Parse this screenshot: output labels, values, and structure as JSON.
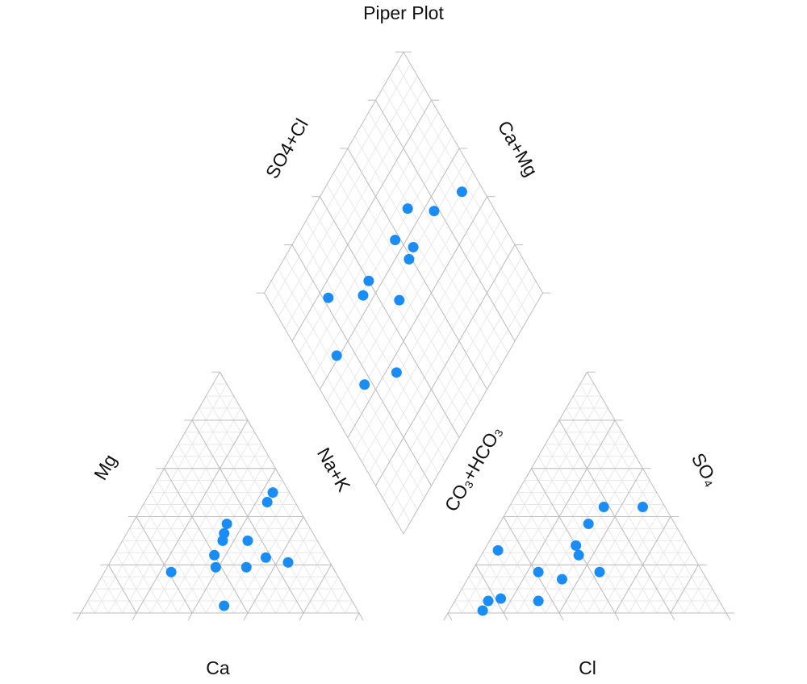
{
  "chart_data": {
    "type": "piper",
    "title": "Piper Plot",
    "ticks": [
      0,
      20,
      40,
      60,
      80,
      100
    ],
    "color": "#1a8cf5",
    "cation": {
      "labels": {
        "ca": "Ca",
        "mg": "Mg",
        "nak": "Na+K"
      },
      "ca": [
        6,
        10,
        29,
        32,
        34,
        25,
        40,
        22,
        15,
        42,
        31,
        59,
        47
      ],
      "mg": [
        50,
        46,
        37,
        33,
        30,
        30,
        24,
        23,
        21,
        19,
        19,
        17,
        3
      ],
      "nak": [
        44,
        44,
        34,
        35,
        36,
        45,
        36,
        55,
        64,
        39,
        50,
        24,
        50
      ]
    },
    "anion": {
      "labels": {
        "co3": "CO₃+HCO₃",
        "so4": "SO₄",
        "cl": "Cl"
      },
      "co3": [
        22,
        8,
        31,
        69,
        40,
        41,
        59,
        52,
        37,
        78,
        83,
        65,
        87
      ],
      "so4": [
        44,
        44,
        37,
        26,
        28,
        24,
        17,
        14,
        17,
        6,
        5,
        5,
        1
      ],
      "cl": [
        34,
        48,
        32,
        5,
        32,
        35,
        24,
        34,
        46,
        16,
        12,
        30,
        12
      ]
    },
    "diamond": {
      "labels": {
        "so4cl": "SO4+Cl",
        "camg": "Ca+Mg"
      },
      "so4cl": [
        92,
        69,
        78,
        58,
        63,
        59,
        40,
        22,
        35,
        47,
        13,
        31,
        17
      ],
      "camg": [
        50,
        66,
        56,
        64,
        56,
        55,
        65,
        76,
        64,
        50,
        61,
        36,
        45
      ]
    }
  }
}
